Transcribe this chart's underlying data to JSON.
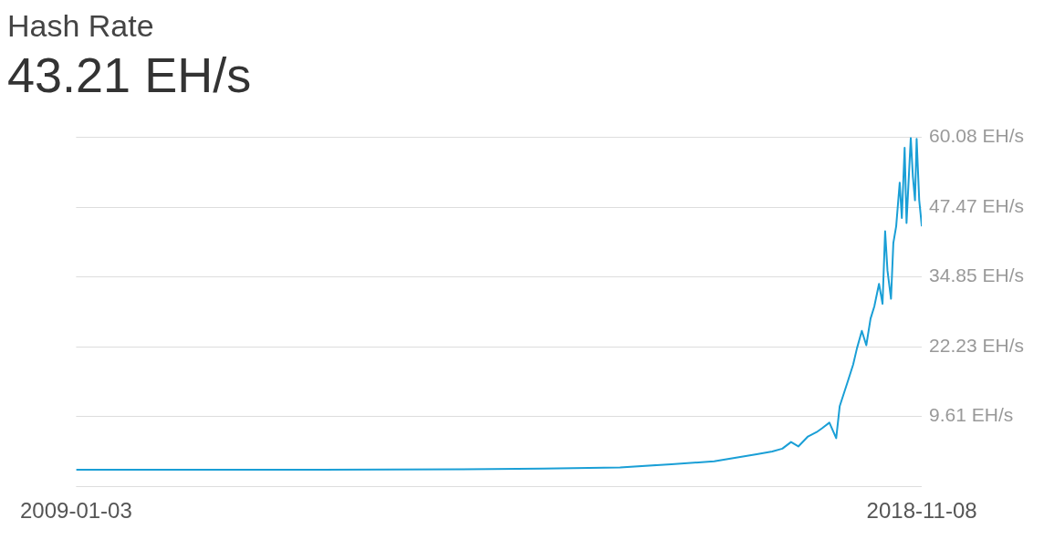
{
  "chart_data": {
    "type": "line",
    "title": "Hash Rate",
    "subtitle": "43.21 EH/s",
    "x": [
      "2009-01-03",
      "2011-11-09",
      "2013-11-05",
      "2014-06-11",
      "2015-05-05",
      "2015-12-09",
      "2016-06-08",
      "2016-12-06",
      "2017-02-10",
      "2017-03-25",
      "2017-05-01",
      "2017-06-01",
      "2017-07-12",
      "2017-08-18",
      "2017-09-10",
      "2017-10-11",
      "2017-11-09",
      "2017-11-24",
      "2017-12-30",
      "2018-01-20",
      "2018-02-05",
      "2018-02-26",
      "2018-03-17",
      "2018-04-04",
      "2018-04-20",
      "2018-05-10",
      "2018-05-25",
      "2018-06-05",
      "2018-06-15",
      "2018-06-30",
      "2018-07-10",
      "2018-07-22",
      "2018-08-06",
      "2018-08-15",
      "2018-08-27",
      "2018-09-04",
      "2018-09-22",
      "2018-10-01",
      "2018-10-10",
      "2018-10-17",
      "2018-10-28",
      "2018-11-08"
    ],
    "series": [
      {
        "color": "#1a9fd6",
        "values": [
          0,
          0,
          0.1,
          0.2,
          0.4,
          1.0,
          1.5,
          2.8,
          3.3,
          3.8,
          5.0,
          4.2,
          6.0,
          6.8,
          7.5,
          8.5,
          5.7,
          11.5,
          16.2,
          19.0,
          21.9,
          25.1,
          22.5,
          27.3,
          29.5,
          33.6,
          30.0,
          43.1,
          36.0,
          30.9,
          41.0,
          44.0,
          51.9,
          45.5,
          58.2,
          44.6,
          60.0,
          53.0,
          48.7,
          59.8,
          48.7,
          44.0
        ]
      }
    ],
    "xlim": [
      "2009-01-03",
      "2018-11-08"
    ],
    "xticks": [
      "2009-01-03",
      "2018-11-08"
    ],
    "ylim": [
      -3.01,
      60.08
    ],
    "yticks": [
      {
        "value": -3.01,
        "label": null
      },
      {
        "value": 9.61,
        "label": "9.61 EH/s"
      },
      {
        "value": 22.23,
        "label": "22.23 EH/s"
      },
      {
        "value": 34.85,
        "label": "34.85 EH/s"
      },
      {
        "value": 47.47,
        "label": "47.47 EH/s"
      },
      {
        "value": 60.08,
        "label": "60.08 EH/s"
      }
    ],
    "grid": "y",
    "legend": false,
    "marker": "none",
    "line_style": "solid"
  }
}
